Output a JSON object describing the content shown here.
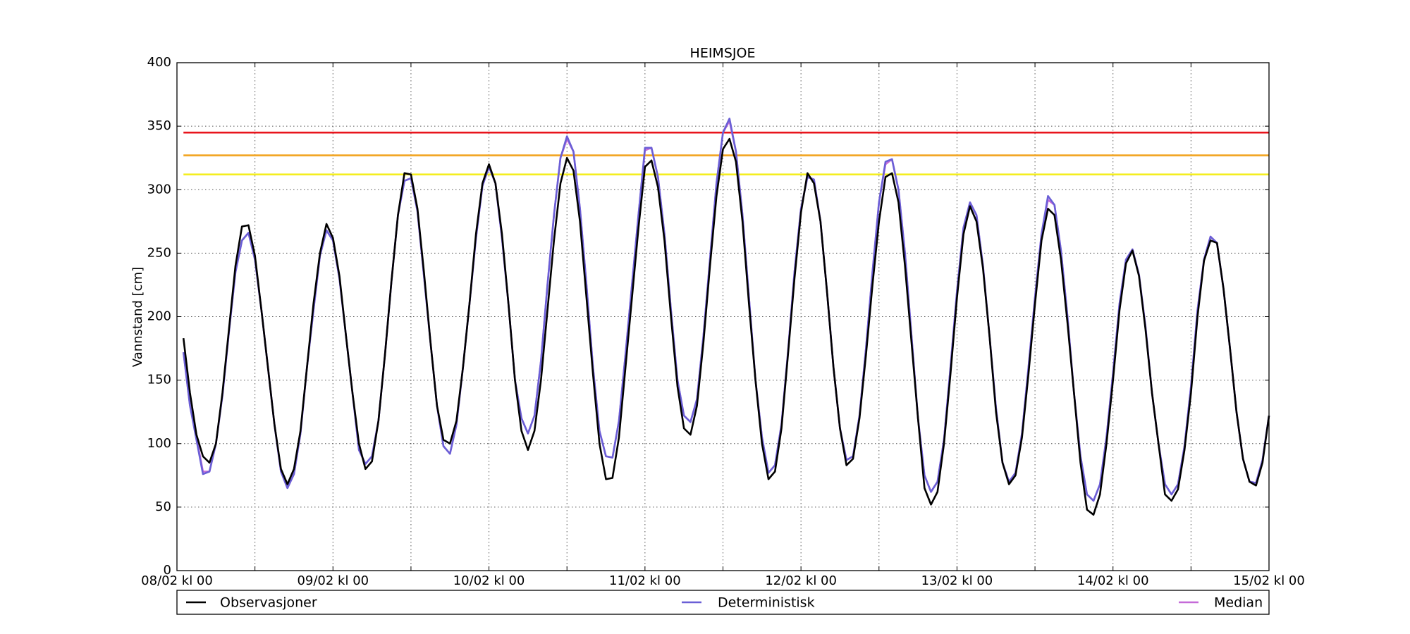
{
  "chart_data": {
    "type": "line",
    "title": "HEIMSJOE",
    "y_label": "Vannstand [cm]",
    "xlim": [
      "08/02 kl 00",
      "15/02 kl 00"
    ],
    "xticks": [
      "08/02 kl 00",
      "09/02 kl 00",
      "10/02 kl 00",
      "11/02 kl 00",
      "12/02 kl 00",
      "13/02 kl 00",
      "14/02 kl 00",
      "15/02 kl 00"
    ],
    "xminorticks": [
      "08/02 kl 12",
      "09/02 kl 12",
      "10/02 kl 12",
      "11/02 kl 12",
      "12/02 kl 12",
      "13/02 kl 12",
      "14/02 kl 12"
    ],
    "ylim": [
      0,
      400
    ],
    "yticks": [
      0,
      50,
      100,
      150,
      200,
      250,
      300,
      350,
      400
    ],
    "grid": true,
    "hlines": [
      {
        "value": 345,
        "color": "#e8141c"
      },
      {
        "value": 327,
        "color": "#f2a41f"
      },
      {
        "value": 312,
        "color": "#f4ee1a"
      }
    ],
    "x": [
      "08/02 kl 01",
      "08/02 kl 02",
      "08/02 kl 03",
      "08/02 kl 04",
      "08/02 kl 05",
      "08/02 kl 06",
      "08/02 kl 07",
      "08/02 kl 08",
      "08/02 kl 09",
      "08/02 kl 10",
      "08/02 kl 11",
      "08/02 kl 12",
      "08/02 kl 13",
      "08/02 kl 14",
      "08/02 kl 15",
      "08/02 kl 16",
      "08/02 kl 17",
      "08/02 kl 18",
      "08/02 kl 19",
      "08/02 kl 20",
      "08/02 kl 21",
      "08/02 kl 22",
      "08/02 kl 23",
      "09/02 kl 00",
      "09/02 kl 01",
      "09/02 kl 02",
      "09/02 kl 03",
      "09/02 kl 04",
      "09/02 kl 05",
      "09/02 kl 06",
      "09/02 kl 07",
      "09/02 kl 08",
      "09/02 kl 09",
      "09/02 kl 10",
      "09/02 kl 11",
      "09/02 kl 12",
      "09/02 kl 13",
      "09/02 kl 14",
      "09/02 kl 15",
      "09/02 kl 16",
      "09/02 kl 17",
      "09/02 kl 18",
      "09/02 kl 19",
      "09/02 kl 20",
      "09/02 kl 21",
      "09/02 kl 22",
      "09/02 kl 23",
      "10/02 kl 00",
      "10/02 kl 01",
      "10/02 kl 02",
      "10/02 kl 03",
      "10/02 kl 04",
      "10/02 kl 05",
      "10/02 kl 06",
      "10/02 kl 07",
      "10/02 kl 08",
      "10/02 kl 09",
      "10/02 kl 10",
      "10/02 kl 11",
      "10/02 kl 12",
      "10/02 kl 13",
      "10/02 kl 14",
      "10/02 kl 15",
      "10/02 kl 16",
      "10/02 kl 17",
      "10/02 kl 18",
      "10/02 kl 19",
      "10/02 kl 20",
      "10/02 kl 21",
      "10/02 kl 22",
      "10/02 kl 23",
      "11/02 kl 00",
      "11/02 kl 01",
      "11/02 kl 02",
      "11/02 kl 03",
      "11/02 kl 04",
      "11/02 kl 05",
      "11/02 kl 06",
      "11/02 kl 07",
      "11/02 kl 08",
      "11/02 kl 09",
      "11/02 kl 10",
      "11/02 kl 11",
      "11/02 kl 12",
      "11/02 kl 13",
      "11/02 kl 14",
      "11/02 kl 15",
      "11/02 kl 16",
      "11/02 kl 17",
      "11/02 kl 18",
      "11/02 kl 19",
      "11/02 kl 20",
      "11/02 kl 21",
      "11/02 kl 22",
      "11/02 kl 23",
      "12/02 kl 00",
      "12/02 kl 01",
      "12/02 kl 02",
      "12/02 kl 03",
      "12/02 kl 04",
      "12/02 kl 05",
      "12/02 kl 06",
      "12/02 kl 07",
      "12/02 kl 08",
      "12/02 kl 09",
      "12/02 kl 10",
      "12/02 kl 11",
      "12/02 kl 12",
      "12/02 kl 13",
      "12/02 kl 14",
      "12/02 kl 15",
      "12/02 kl 16",
      "12/02 kl 17",
      "12/02 kl 18",
      "12/02 kl 19",
      "12/02 kl 20",
      "12/02 kl 21",
      "12/02 kl 22",
      "12/02 kl 23",
      "13/02 kl 00",
      "13/02 kl 01",
      "13/02 kl 02",
      "13/02 kl 03",
      "13/02 kl 04",
      "13/02 kl 05",
      "13/02 kl 06",
      "13/02 kl 07",
      "13/02 kl 08",
      "13/02 kl 09",
      "13/02 kl 10",
      "13/02 kl 11",
      "13/02 kl 12",
      "13/02 kl 13",
      "13/02 kl 14",
      "13/02 kl 15",
      "13/02 kl 16",
      "13/02 kl 17",
      "13/02 kl 18",
      "13/02 kl 19",
      "13/02 kl 20",
      "13/02 kl 21",
      "13/02 kl 22",
      "13/02 kl 23",
      "14/02 kl 00",
      "14/02 kl 01",
      "14/02 kl 02",
      "14/02 kl 03",
      "14/02 kl 04",
      "14/02 kl 05",
      "14/02 kl 06",
      "14/02 kl 07",
      "14/02 kl 08",
      "14/02 kl 09",
      "14/02 kl 10",
      "14/02 kl 11",
      "14/02 kl 12",
      "14/02 kl 13",
      "14/02 kl 14",
      "14/02 kl 15",
      "14/02 kl 16",
      "14/02 kl 17",
      "14/02 kl 18",
      "14/02 kl 19",
      "14/02 kl 20",
      "14/02 kl 21",
      "14/02 kl 22",
      "14/02 kl 23",
      "15/02 kl 00"
    ],
    "series": [
      {
        "name": "Observasjoner",
        "color": "#000000",
        "values": [
          183,
          140,
          107,
          90,
          85,
          100,
          140,
          190,
          240,
          271,
          272,
          248,
          205,
          160,
          115,
          80,
          68,
          80,
          110,
          160,
          210,
          250,
          273,
          262,
          232,
          185,
          140,
          100,
          80,
          86,
          118,
          170,
          228,
          280,
          313,
          312,
          285,
          235,
          180,
          130,
          103,
          100,
          118,
          160,
          210,
          265,
          305,
          320,
          305,
          265,
          210,
          150,
          110,
          95,
          110,
          150,
          205,
          260,
          305,
          325,
          315,
          275,
          215,
          155,
          100,
          72,
          73,
          105,
          160,
          215,
          270,
          318,
          323,
          302,
          260,
          200,
          145,
          112,
          107,
          130,
          180,
          240,
          295,
          332,
          340,
          322,
          275,
          210,
          150,
          100,
          72,
          78,
          112,
          170,
          230,
          282,
          313,
          305,
          275,
          220,
          160,
          112,
          83,
          88,
          120,
          170,
          225,
          275,
          310,
          313,
          290,
          240,
          180,
          120,
          65,
          52,
          62,
          100,
          155,
          215,
          265,
          287,
          275,
          238,
          185,
          125,
          85,
          68,
          75,
          105,
          155,
          210,
          260,
          285,
          280,
          245,
          195,
          140,
          85,
          48,
          44,
          60,
          100,
          150,
          205,
          242,
          252,
          232,
          190,
          140,
          100,
          60,
          55,
          64,
          95,
          140,
          200,
          244,
          260,
          258,
          222,
          175,
          125,
          88,
          70,
          67,
          85,
          122
        ]
      },
      {
        "name": "Deterministisk",
        "color": "#6a5fd6",
        "values": [
          172,
          130,
          103,
          76,
          78,
          100,
          138,
          188,
          235,
          260,
          266,
          245,
          205,
          160,
          115,
          78,
          65,
          76,
          108,
          160,
          205,
          248,
          268,
          260,
          230,
          185,
          140,
          95,
          84,
          90,
          118,
          170,
          228,
          280,
          307,
          309,
          283,
          232,
          180,
          130,
          98,
          92,
          115,
          160,
          210,
          262,
          303,
          318,
          305,
          262,
          210,
          150,
          120,
          108,
          122,
          165,
          225,
          280,
          325,
          342,
          330,
          285,
          225,
          160,
          110,
          90,
          89,
          118,
          170,
          225,
          280,
          333,
          333,
          310,
          265,
          205,
          150,
          122,
          117,
          135,
          185,
          245,
          305,
          345,
          356,
          330,
          280,
          215,
          150,
          105,
          77,
          83,
          115,
          172,
          235,
          285,
          310,
          308,
          275,
          220,
          160,
          112,
          87,
          90,
          122,
          175,
          235,
          290,
          322,
          324,
          300,
          250,
          185,
          120,
          75,
          62,
          70,
          103,
          160,
          220,
          270,
          290,
          280,
          240,
          185,
          128,
          85,
          70,
          77,
          108,
          160,
          215,
          265,
          295,
          288,
          252,
          200,
          140,
          90,
          60,
          55,
          68,
          105,
          155,
          210,
          245,
          253,
          233,
          192,
          140,
          100,
          68,
          60,
          68,
          98,
          145,
          205,
          245,
          263,
          258,
          222,
          175,
          125,
          88,
          70,
          69,
          87,
          122
        ]
      },
      {
        "name": "Median",
        "color": "#c56ad8",
        "values": [
          172,
          130,
          105,
          78,
          78,
          100,
          138,
          188,
          235,
          260,
          266,
          245,
          205,
          160,
          115,
          78,
          65,
          76,
          108,
          160,
          205,
          248,
          268,
          260,
          230,
          185,
          140,
          95,
          84,
          90,
          118,
          170,
          228,
          280,
          307,
          309,
          283,
          232,
          180,
          130,
          98,
          92,
          115,
          160,
          210,
          262,
          303,
          318,
          305,
          262,
          210,
          150,
          120,
          108,
          122,
          165,
          225,
          280,
          325,
          340,
          330,
          285,
          225,
          160,
          110,
          90,
          89,
          118,
          170,
          225,
          280,
          331,
          333,
          310,
          265,
          205,
          150,
          122,
          117,
          135,
          185,
          245,
          305,
          345,
          354,
          330,
          280,
          215,
          150,
          105,
          77,
          83,
          115,
          172,
          235,
          285,
          310,
          308,
          275,
          220,
          160,
          112,
          87,
          90,
          122,
          175,
          235,
          290,
          320,
          324,
          300,
          250,
          185,
          120,
          75,
          62,
          70,
          103,
          160,
          220,
          270,
          290,
          280,
          240,
          185,
          128,
          85,
          70,
          77,
          108,
          160,
          215,
          265,
          292,
          288,
          252,
          200,
          140,
          90,
          60,
          55,
          68,
          105,
          155,
          210,
          245,
          253,
          233,
          192,
          140,
          100,
          68,
          60,
          68,
          98,
          145,
          205,
          245,
          263,
          258,
          222,
          175,
          125,
          88,
          70,
          69,
          87,
          122
        ]
      }
    ]
  }
}
